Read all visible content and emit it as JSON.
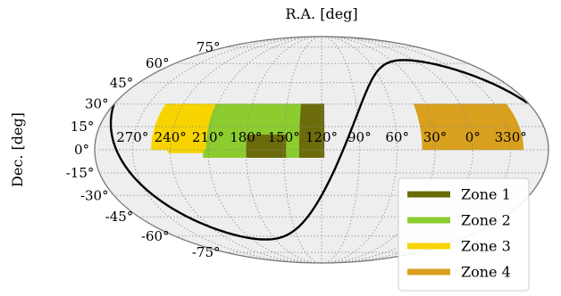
{
  "chart_data": {
    "type": "scatter",
    "projection": "mollweide",
    "xlabel": "R.A. [deg]",
    "ylabel": "Dec. [deg]",
    "ra_ticks": [
      "270°",
      "240°",
      "210°",
      "180°",
      "150°",
      "120°",
      "90°",
      "60°",
      "30°",
      "0°",
      "330°"
    ],
    "ra_tick_values": [
      270,
      240,
      210,
      180,
      150,
      120,
      90,
      60,
      30,
      0,
      330
    ],
    "dec_ticks": [
      "75°",
      "60°",
      "45°",
      "30°",
      "15°",
      "0°",
      "-15°",
      "-30°",
      "-45°",
      "-60°",
      "-75°"
    ],
    "dec_tick_values": [
      75,
      60,
      45,
      30,
      15,
      0,
      -15,
      -30,
      -45,
      -60,
      -75
    ],
    "grid": true,
    "legend_position": "bottom-right",
    "zones": [
      {
        "name": "Zone 1",
        "color": "#6b6b0c",
        "regions": [
          {
            "ra": [
              148,
              180
            ],
            "dec": [
              -5,
              10
            ]
          },
          {
            "ra": [
              118,
              138
            ],
            "dec": [
              -5,
              30
            ]
          }
        ]
      },
      {
        "name": "Zone 2",
        "color": "#8ccc2e",
        "regions": [
          {
            "ra": [
              180,
              214
            ],
            "dec": [
              -5,
              10
            ]
          },
          {
            "ra": [
              138,
              212
            ],
            "dec": [
              10,
              30
            ]
          },
          {
            "ra": [
              148,
              180
            ],
            "dec": [
              10,
              30
            ]
          },
          {
            "ra": [
              138,
              148
            ],
            "dec": [
              -5,
              10
            ]
          }
        ]
      },
      {
        "name": "Zone 3",
        "color": "#f7d400",
        "regions": [
          {
            "ra": [
              212,
              255
            ],
            "dec": [
              0,
              30
            ]
          },
          {
            "ra": [
              214,
              242
            ],
            "dec": [
              -2,
              0
            ]
          }
        ]
      },
      {
        "name": "Zone 4",
        "color": "#d9a01e",
        "regions": [
          {
            "ra": [
              320,
              360
            ],
            "dec": [
              0,
              30
            ]
          },
          {
            "ra": [
              0,
              40
            ],
            "dec": [
              0,
              30
            ]
          }
        ]
      }
    ],
    "galactic_plane_color": "#000000"
  }
}
